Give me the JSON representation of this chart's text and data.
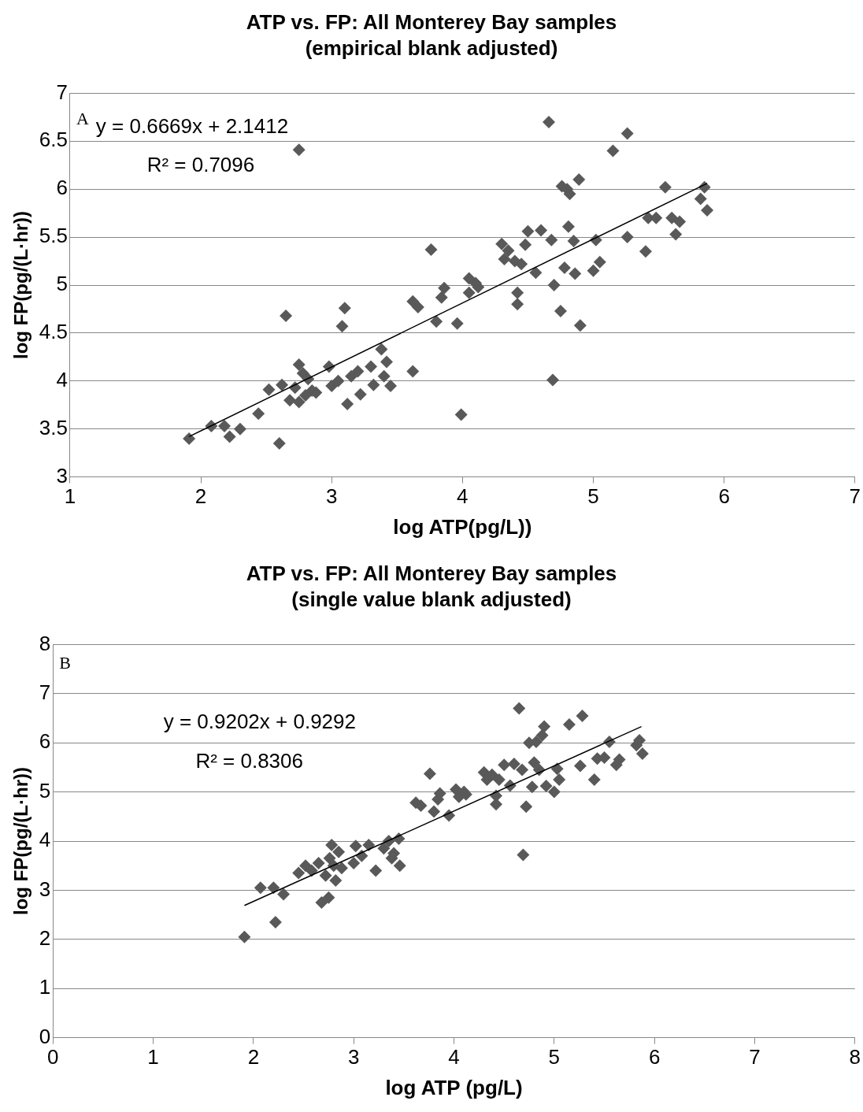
{
  "chart_data": [
    {
      "type": "scatter",
      "title": "ATP vs. FP: All Monterey Bay samples",
      "subtitle": "(empirical blank adjusted)",
      "xlabel": "log ATP(pg/L))",
      "ylabel": "log FP(pg/(L·hr))",
      "annotations": [
        "A",
        "y = 0.6669x + 2.1412",
        "R² = 0.7096"
      ],
      "xlim": [
        1,
        7
      ],
      "xticks": [
        1,
        2,
        3,
        4,
        5,
        6,
        7
      ],
      "ylim": [
        3,
        7
      ],
      "yticks": [
        3,
        3.5,
        4,
        4.5,
        5,
        5.5,
        6,
        6.5,
        7
      ],
      "grid": "y",
      "legend": false,
      "series": [
        {
          "marker": "diamond",
          "color": "#595959",
          "x": [
            1.91,
            2.08,
            2.18,
            2.22,
            2.3,
            2.44,
            2.52,
            2.6,
            2.62,
            2.65,
            2.68,
            2.72,
            2.75,
            2.75,
            2.78,
            2.8,
            2.82,
            2.85,
            2.88,
            2.98,
            3.0,
            3.05,
            3.08,
            3.1,
            3.12,
            3.15,
            3.2,
            3.22,
            3.3,
            3.32,
            3.38,
            3.4,
            3.42,
            3.45,
            3.62,
            3.62,
            3.66,
            3.76,
            3.8,
            3.84,
            3.86,
            3.96,
            3.99,
            4.05,
            4.05,
            4.1,
            4.12,
            4.3,
            4.32,
            4.35,
            4.4,
            4.42,
            4.42,
            4.45,
            4.48,
            4.5,
            4.56,
            4.6,
            4.66,
            4.68,
            4.69,
            4.7,
            4.75,
            4.76,
            4.78,
            4.8,
            4.81,
            4.82,
            4.85,
            4.86,
            4.89,
            4.9,
            5.0,
            5.02,
            5.05,
            5.15,
            5.26,
            5.26,
            5.4,
            5.42,
            5.48,
            5.55,
            5.6,
            5.63,
            5.66,
            5.82,
            5.85,
            5.87,
            2.75
          ],
          "values": [
            3.4,
            3.53,
            3.53,
            3.42,
            3.5,
            3.66,
            3.91,
            3.35,
            3.96,
            4.68,
            3.8,
            3.93,
            4.17,
            3.78,
            4.08,
            3.85,
            4.02,
            3.9,
            3.88,
            4.15,
            3.95,
            4.0,
            4.57,
            4.76,
            3.76,
            4.05,
            4.1,
            3.86,
            4.15,
            3.96,
            4.33,
            4.05,
            4.2,
            3.95,
            4.1,
            4.83,
            4.77,
            5.37,
            4.62,
            4.87,
            4.97,
            4.6,
            3.65,
            5.07,
            4.92,
            5.02,
            4.98,
            5.43,
            5.27,
            5.36,
            5.25,
            4.92,
            4.8,
            5.22,
            5.42,
            5.56,
            5.13,
            5.57,
            6.7,
            5.47,
            4.01,
            5.0,
            4.73,
            6.03,
            5.18,
            6.0,
            5.61,
            5.95,
            5.46,
            5.12,
            6.1,
            4.58,
            5.15,
            5.47,
            5.24,
            6.4,
            6.58,
            5.5,
            5.35,
            5.7,
            5.7,
            6.02,
            5.7,
            5.53,
            5.66,
            5.9,
            6.02,
            5.78,
            6.41
          ]
        },
        {
          "type": "line",
          "marker": "none",
          "color": "#000000",
          "x": [
            1.91,
            5.87
          ],
          "values": [
            3.42,
            6.06
          ]
        }
      ]
    },
    {
      "type": "scatter",
      "title": "ATP vs. FP: All Monterey Bay samples",
      "subtitle": "(single value blank adjusted)",
      "xlabel": "log ATP (pg/L)",
      "ylabel": "log FP(pg/(L·hr))",
      "annotations": [
        "B",
        "y = 0.9202x + 0.9292",
        "R² = 0.8306"
      ],
      "xlim": [
        0,
        8
      ],
      "xticks": [
        0,
        1,
        2,
        3,
        4,
        5,
        6,
        7,
        8
      ],
      "ylim": [
        0,
        8
      ],
      "yticks": [
        0,
        1,
        2,
        3,
        4,
        5,
        6,
        7,
        8
      ],
      "grid": "y",
      "legend": false,
      "series": [
        {
          "marker": "diamond",
          "color": "#595959",
          "x": [
            1.91,
            2.07,
            2.2,
            2.22,
            2.3,
            2.45,
            2.52,
            2.58,
            2.65,
            2.68,
            2.72,
            2.75,
            2.76,
            2.78,
            2.8,
            2.82,
            2.85,
            2.88,
            3.0,
            3.02,
            3.08,
            3.15,
            3.22,
            3.3,
            3.35,
            3.38,
            3.4,
            3.45,
            3.46,
            3.62,
            3.67,
            3.76,
            3.8,
            3.84,
            3.86,
            3.95,
            4.02,
            4.05,
            4.1,
            4.12,
            4.3,
            4.33,
            4.38,
            4.42,
            4.42,
            4.45,
            4.5,
            4.56,
            4.6,
            4.65,
            4.68,
            4.69,
            4.72,
            4.75,
            4.78,
            4.8,
            4.82,
            4.85,
            4.88,
            4.9,
            4.92,
            5.0,
            5.03,
            5.05,
            5.15,
            5.28,
            5.26,
            5.4,
            5.43,
            5.5,
            5.55,
            5.62,
            5.65,
            5.82,
            5.85,
            5.88
          ],
          "values": [
            2.05,
            3.05,
            3.05,
            2.35,
            2.92,
            3.35,
            3.5,
            3.4,
            3.55,
            2.75,
            3.3,
            2.85,
            3.65,
            3.92,
            3.5,
            3.2,
            3.78,
            3.45,
            3.55,
            3.9,
            3.7,
            3.92,
            3.4,
            3.85,
            4.0,
            3.65,
            3.75,
            4.05,
            3.5,
            4.78,
            4.72,
            5.37,
            4.6,
            4.85,
            4.97,
            4.52,
            5.05,
            4.9,
            5.0,
            4.95,
            5.4,
            5.25,
            5.35,
            4.92,
            4.75,
            5.25,
            5.55,
            5.13,
            5.57,
            6.7,
            5.45,
            3.72,
            4.7,
            6.0,
            5.1,
            5.6,
            6.02,
            5.45,
            6.15,
            6.33,
            5.12,
            5.0,
            5.47,
            5.25,
            6.37,
            6.55,
            5.53,
            5.25,
            5.68,
            5.7,
            6.02,
            5.55,
            5.66,
            5.95,
            6.05,
            5.78
          ]
        },
        {
          "type": "line",
          "marker": "none",
          "color": "#000000",
          "x": [
            1.91,
            5.87
          ],
          "values": [
            2.69,
            6.33
          ]
        }
      ]
    }
  ]
}
